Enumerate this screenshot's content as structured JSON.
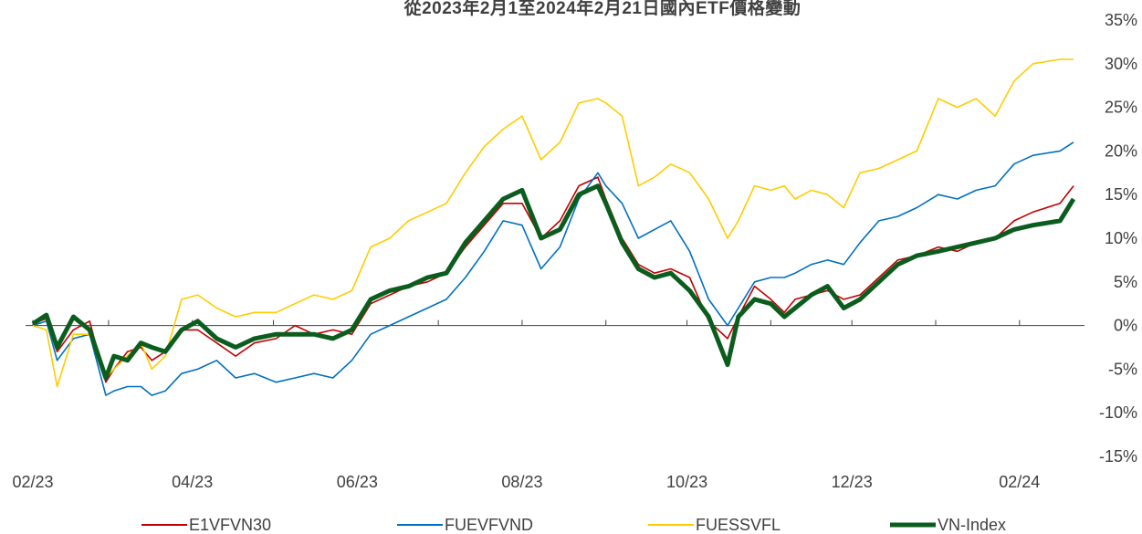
{
  "chart_data": {
    "type": "line",
    "title": "從2023年2月1至2024年2月21日國內ETF價格變動",
    "xlabel": "",
    "ylabel": "",
    "x_ticks": [
      "02/23",
      "04/23",
      "06/23",
      "08/23",
      "10/23",
      "12/23",
      "02/24"
    ],
    "y_ticks": [
      "35%",
      "30%",
      "25%",
      "20%",
      "15%",
      "10%",
      "5%",
      "0%",
      "-5%",
      "-10%",
      "-15%"
    ],
    "ylim": [
      -15,
      35
    ],
    "y_axis_position": "right",
    "y_unit": "%",
    "grid": false,
    "legend_position": "bottom",
    "series": [
      {
        "name": "E1VFVN30",
        "color": "#C00000",
        "x": [
          "2023-02-01",
          "2023-02-06",
          "2023-02-10",
          "2023-02-16",
          "2023-02-22",
          "2023-02-28",
          "2023-03-03",
          "2023-03-08",
          "2023-03-13",
          "2023-03-17",
          "2023-03-22",
          "2023-03-28",
          "2023-04-03",
          "2023-04-10",
          "2023-04-17",
          "2023-04-24",
          "2023-05-02",
          "2023-05-09",
          "2023-05-16",
          "2023-05-23",
          "2023-05-30",
          "2023-06-06",
          "2023-06-13",
          "2023-06-20",
          "2023-06-27",
          "2023-07-04",
          "2023-07-11",
          "2023-07-18",
          "2023-07-25",
          "2023-08-01",
          "2023-08-08",
          "2023-08-15",
          "2023-08-22",
          "2023-08-29",
          "2023-09-01",
          "2023-09-07",
          "2023-09-13",
          "2023-09-19",
          "2023-09-25",
          "2023-10-02",
          "2023-10-09",
          "2023-10-16",
          "2023-10-20",
          "2023-10-26",
          "2023-11-01",
          "2023-11-06",
          "2023-11-10",
          "2023-11-16",
          "2023-11-22",
          "2023-11-28",
          "2023-12-04",
          "2023-12-11",
          "2023-12-18",
          "2023-12-25",
          "2024-01-02",
          "2024-01-09",
          "2024-01-16",
          "2024-01-23",
          "2024-01-30",
          "2024-02-06",
          "2024-02-16",
          "2024-02-21"
        ],
        "values": [
          0.2,
          0.8,
          -3.0,
          -0.5,
          0.5,
          -6.5,
          -5.0,
          -3.0,
          -2.5,
          -4.0,
          -3.0,
          -0.5,
          -0.5,
          -2.0,
          -3.5,
          -2.0,
          -1.5,
          0.0,
          -1.0,
          -0.5,
          -1.0,
          2.5,
          3.5,
          4.5,
          5.0,
          6.0,
          9.0,
          11.5,
          14.0,
          14.0,
          10.0,
          12.0,
          16.0,
          17.0,
          14.5,
          10.0,
          7.0,
          6.0,
          6.5,
          5.5,
          0.5,
          -1.5,
          1.0,
          4.5,
          3.0,
          1.5,
          3.0,
          3.5,
          4.0,
          3.0,
          3.5,
          5.5,
          7.5,
          8.0,
          9.0,
          8.5,
          9.5,
          10.0,
          12.0,
          13.0,
          14.0,
          16.0
        ]
      },
      {
        "name": "FUEVFVND",
        "color": "#0070C0",
        "x": [
          "2023-02-01",
          "2023-02-06",
          "2023-02-10",
          "2023-02-16",
          "2023-02-22",
          "2023-02-28",
          "2023-03-03",
          "2023-03-08",
          "2023-03-13",
          "2023-03-17",
          "2023-03-22",
          "2023-03-28",
          "2023-04-03",
          "2023-04-10",
          "2023-04-17",
          "2023-04-24",
          "2023-05-02",
          "2023-05-09",
          "2023-05-16",
          "2023-05-23",
          "2023-05-30",
          "2023-06-06",
          "2023-06-13",
          "2023-06-20",
          "2023-06-27",
          "2023-07-04",
          "2023-07-11",
          "2023-07-18",
          "2023-07-25",
          "2023-08-01",
          "2023-08-08",
          "2023-08-15",
          "2023-08-22",
          "2023-08-29",
          "2023-09-01",
          "2023-09-07",
          "2023-09-13",
          "2023-09-19",
          "2023-09-25",
          "2023-10-02",
          "2023-10-09",
          "2023-10-16",
          "2023-10-20",
          "2023-10-26",
          "2023-11-01",
          "2023-11-06",
          "2023-11-10",
          "2023-11-16",
          "2023-11-22",
          "2023-11-28",
          "2023-12-04",
          "2023-12-11",
          "2023-12-18",
          "2023-12-25",
          "2024-01-02",
          "2024-01-09",
          "2024-01-16",
          "2024-01-23",
          "2024-01-30",
          "2024-02-06",
          "2024-02-16",
          "2024-02-21"
        ],
        "values": [
          0.0,
          0.5,
          -4.0,
          -1.5,
          -1.0,
          -8.0,
          -7.5,
          -7.0,
          -7.0,
          -8.0,
          -7.5,
          -5.5,
          -5.0,
          -4.0,
          -6.0,
          -5.5,
          -6.5,
          -6.0,
          -5.5,
          -6.0,
          -4.0,
          -1.0,
          0.0,
          1.0,
          2.0,
          3.0,
          5.5,
          8.5,
          12.0,
          11.5,
          6.5,
          9.0,
          14.5,
          17.5,
          16.0,
          14.0,
          10.0,
          11.0,
          12.0,
          8.5,
          3.0,
          0.0,
          2.0,
          5.0,
          5.5,
          5.5,
          6.0,
          7.0,
          7.5,
          7.0,
          9.5,
          12.0,
          12.5,
          13.5,
          15.0,
          14.5,
          15.5,
          16.0,
          18.5,
          19.5,
          20.0,
          21.0
        ]
      },
      {
        "name": "FUESSVFL",
        "color": "#FFCC00",
        "x": [
          "2023-02-01",
          "2023-02-06",
          "2023-02-10",
          "2023-02-16",
          "2023-02-22",
          "2023-02-28",
          "2023-03-03",
          "2023-03-08",
          "2023-03-13",
          "2023-03-17",
          "2023-03-22",
          "2023-03-28",
          "2023-04-03",
          "2023-04-10",
          "2023-04-17",
          "2023-04-24",
          "2023-05-02",
          "2023-05-09",
          "2023-05-16",
          "2023-05-23",
          "2023-05-30",
          "2023-06-06",
          "2023-06-13",
          "2023-06-20",
          "2023-06-27",
          "2023-07-04",
          "2023-07-11",
          "2023-07-18",
          "2023-07-25",
          "2023-08-01",
          "2023-08-08",
          "2023-08-15",
          "2023-08-22",
          "2023-08-29",
          "2023-09-01",
          "2023-09-07",
          "2023-09-13",
          "2023-09-19",
          "2023-09-25",
          "2023-10-02",
          "2023-10-09",
          "2023-10-16",
          "2023-10-20",
          "2023-10-26",
          "2023-11-01",
          "2023-11-06",
          "2023-11-10",
          "2023-11-16",
          "2023-11-22",
          "2023-11-28",
          "2023-12-04",
          "2023-12-11",
          "2023-12-18",
          "2023-12-25",
          "2024-01-02",
          "2024-01-09",
          "2024-01-16",
          "2024-01-23",
          "2024-01-30",
          "2024-02-06",
          "2024-02-16",
          "2024-02-21"
        ],
        "values": [
          0.0,
          -0.5,
          -7.0,
          -1.0,
          -1.0,
          -6.0,
          -5.0,
          -3.5,
          -2.0,
          -5.0,
          -3.5,
          3.0,
          3.5,
          2.0,
          1.0,
          1.5,
          1.5,
          2.5,
          3.5,
          3.0,
          4.0,
          9.0,
          10.0,
          12.0,
          13.0,
          14.0,
          17.5,
          20.5,
          22.5,
          24.0,
          19.0,
          21.0,
          25.5,
          26.0,
          25.5,
          24.0,
          16.0,
          17.0,
          18.5,
          17.5,
          14.5,
          10.0,
          12.0,
          16.0,
          15.5,
          16.0,
          14.5,
          15.5,
          15.0,
          13.5,
          17.5,
          18.0,
          19.0,
          20.0,
          26.0,
          25.0,
          26.0,
          24.0,
          28.0,
          30.0,
          30.5,
          30.5
        ]
      },
      {
        "name": "VN-Index",
        "color": "#0B5D1E",
        "x": [
          "2023-02-01",
          "2023-02-06",
          "2023-02-10",
          "2023-02-16",
          "2023-02-22",
          "2023-02-28",
          "2023-03-03",
          "2023-03-08",
          "2023-03-13",
          "2023-03-17",
          "2023-03-22",
          "2023-03-28",
          "2023-04-03",
          "2023-04-10",
          "2023-04-17",
          "2023-04-24",
          "2023-05-02",
          "2023-05-09",
          "2023-05-16",
          "2023-05-23",
          "2023-05-30",
          "2023-06-06",
          "2023-06-13",
          "2023-06-20",
          "2023-06-27",
          "2023-07-04",
          "2023-07-11",
          "2023-07-18",
          "2023-07-25",
          "2023-08-01",
          "2023-08-08",
          "2023-08-15",
          "2023-08-22",
          "2023-08-29",
          "2023-09-01",
          "2023-09-07",
          "2023-09-13",
          "2023-09-19",
          "2023-09-25",
          "2023-10-02",
          "2023-10-09",
          "2023-10-16",
          "2023-10-20",
          "2023-10-26",
          "2023-11-01",
          "2023-11-06",
          "2023-11-10",
          "2023-11-16",
          "2023-11-22",
          "2023-11-28",
          "2023-12-04",
          "2023-12-11",
          "2023-12-18",
          "2023-12-25",
          "2024-01-02",
          "2024-01-09",
          "2024-01-16",
          "2024-01-23",
          "2024-01-30",
          "2024-02-06",
          "2024-02-16",
          "2024-02-21"
        ],
        "values": [
          0.2,
          1.2,
          -2.5,
          1.0,
          -0.5,
          -6.0,
          -3.5,
          -4.0,
          -2.0,
          -2.5,
          -3.0,
          -0.5,
          0.5,
          -1.5,
          -2.5,
          -1.5,
          -1.0,
          -1.0,
          -1.0,
          -1.5,
          -0.5,
          3.0,
          4.0,
          4.5,
          5.5,
          6.0,
          9.5,
          12.0,
          14.5,
          15.5,
          10.0,
          11.0,
          15.0,
          16.0,
          14.0,
          9.5,
          6.5,
          5.5,
          6.0,
          4.0,
          1.0,
          -4.5,
          1.0,
          3.0,
          2.5,
          1.0,
          2.0,
          3.5,
          4.5,
          2.0,
          3.0,
          5.0,
          7.0,
          8.0,
          8.5,
          9.0,
          9.5,
          10.0,
          11.0,
          11.5,
          12.0,
          14.5
        ]
      }
    ]
  }
}
